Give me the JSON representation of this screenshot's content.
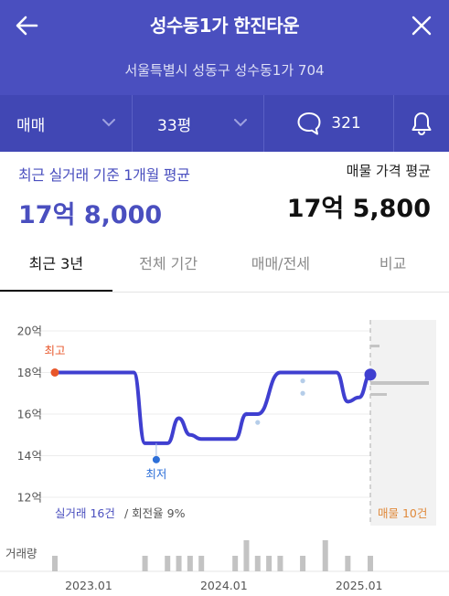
{
  "header": {
    "title": "성수동1가 한진타운",
    "address": "서울특별시 성동구 성수동1가 704"
  },
  "filters": {
    "trade_type": "매매",
    "area": "33평",
    "comment_count": "321"
  },
  "summary": {
    "recent_label": "최근 실거래 기준 1개월 평균",
    "recent_value": "17억 8,000",
    "listing_label": "매물 가격 평균",
    "listing_value": "17억 5,800"
  },
  "tabs": [
    {
      "label": "최근 3년"
    },
    {
      "label": "전체 기간"
    },
    {
      "label": "매매/전세"
    },
    {
      "label": "비교"
    }
  ],
  "colors": {
    "header_bg": "#4a4fbf",
    "accent": "#4a4fbf",
    "line": "#3f3fd0",
    "high": "#e8562a",
    "low": "#2d6fd8",
    "listing": "#e08a3c"
  },
  "chart_data": {
    "type": "line",
    "y_ticks": [
      "20억",
      "18억",
      "16억",
      "14억",
      "12억"
    ],
    "x_ticks": [
      "2023.01",
      "2024.01",
      "2025.01"
    ],
    "ylim": [
      12,
      20
    ],
    "high_label": "최고",
    "low_label": "최저",
    "trade_note_count": "실거래 16건",
    "trade_note_rate": "회전율 9%",
    "listing_note": "매물 10건",
    "volume_label": "거래량",
    "series": [
      {
        "x": [
          "2022.10",
          "2023.05",
          "2023.06",
          "2023.07",
          "2023.08",
          "2023.09",
          "2023.10",
          "2023.11",
          "2024.02",
          "2024.03",
          "2024.04",
          "2024.06",
          "2024.07",
          "2024.10",
          "2024.11",
          "2024.12",
          "2025.01",
          "2025.02"
        ],
        "values": [
          18,
          18,
          14.6,
          14.6,
          14.6,
          15.8,
          15,
          14.8,
          14.8,
          16,
          16,
          18,
          18,
          18,
          18,
          16.6,
          16.8,
          17.9
        ]
      }
    ],
    "extra_points": {
      "x": [
        "2024.03",
        "2024.04",
        "2024.08",
        "2024.08"
      ],
      "values": [
        16,
        15.6,
        17.6,
        17.0
      ]
    },
    "volume": {
      "x": [
        "2022.10",
        "2023.05",
        "2023.06",
        "2023.07",
        "2023.08",
        "2023.09",
        "2023.10",
        "2023.11",
        "2024.01",
        "2024.02",
        "2024.03",
        "2024.04",
        "2024.05",
        "2024.06",
        "2024.07",
        "2024.08",
        "2024.10",
        "2024.11",
        "2024.12",
        "2025.01",
        "2025.02"
      ],
      "values": [
        1,
        0,
        1,
        0,
        1,
        1,
        1,
        1,
        0,
        1,
        2,
        1,
        1,
        1,
        0,
        1,
        2,
        0,
        1,
        0,
        1
      ]
    }
  }
}
